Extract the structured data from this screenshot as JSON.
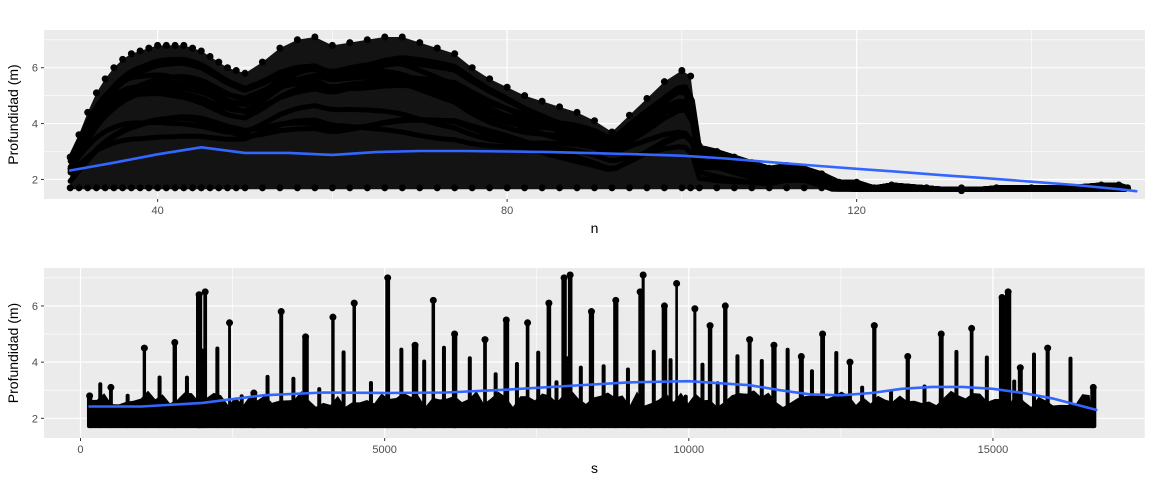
{
  "chart_data": [
    {
      "type": "scatter",
      "xlabel": "n",
      "ylabel": "Profundidad (m)",
      "xlim": [
        27,
        153
      ],
      "ylim": [
        1.3,
        7.35
      ],
      "x_ticks": [
        40,
        80,
        120
      ],
      "y_ticks": [
        2,
        4,
        6
      ],
      "grid": true,
      "legend": "none",
      "point_color": "#000000",
      "smooth_color": "#3366FF",
      "series": [
        {
          "kind": "points",
          "x": [
            30,
            31,
            32,
            33,
            34,
            35,
            36,
            37,
            38,
            39,
            40,
            41,
            42,
            43,
            44,
            45,
            46,
            47,
            48,
            49,
            50,
            52,
            54,
            56,
            58,
            60,
            62,
            64,
            66,
            68,
            70,
            72,
            74,
            76,
            78,
            80,
            82,
            84,
            86,
            88,
            90,
            92,
            94,
            96,
            98,
            100,
            101,
            102,
            104,
            106,
            108,
            110,
            112,
            114,
            116,
            118,
            120,
            122,
            124,
            128,
            132,
            136,
            140,
            144,
            148,
            150,
            151
          ],
          "y": [
            2.8,
            3.6,
            4.4,
            5.1,
            5.6,
            6.0,
            6.3,
            6.5,
            6.6,
            6.7,
            6.8,
            6.8,
            6.8,
            6.8,
            6.7,
            6.6,
            6.4,
            6.2,
            6.0,
            5.9,
            5.8,
            6.2,
            6.7,
            7.0,
            7.1,
            6.8,
            6.9,
            7.0,
            7.1,
            7.1,
            6.9,
            6.7,
            6.5,
            6.0,
            5.6,
            5.3,
            5.0,
            4.8,
            4.6,
            4.4,
            4.1,
            3.7,
            4.3,
            4.9,
            5.5,
            5.9,
            5.7,
            3.2,
            3.0,
            2.8,
            2.6,
            2.4,
            2.5,
            2.4,
            2.2,
            1.9,
            1.9,
            1.7,
            1.8,
            1.7,
            1.6,
            1.7,
            1.7,
            1.7,
            1.8,
            1.8,
            1.7
          ]
        },
        {
          "kind": "smooth",
          "x": [
            30,
            35,
            40,
            45,
            50,
            55,
            60,
            65,
            70,
            75,
            80,
            85,
            90,
            95,
            100,
            105,
            110,
            115,
            120,
            125,
            130,
            135,
            140,
            145,
            150,
            152
          ],
          "y": [
            2.32,
            2.6,
            2.9,
            3.15,
            2.95,
            2.95,
            2.88,
            2.98,
            3.02,
            3.02,
            3.0,
            2.98,
            2.94,
            2.9,
            2.85,
            2.75,
            2.62,
            2.5,
            2.38,
            2.27,
            2.15,
            2.04,
            1.92,
            1.8,
            1.65,
            1.58
          ]
        }
      ]
    },
    {
      "type": "scatter",
      "xlabel": "s",
      "ylabel": "Profundidad (m)",
      "xlim": [
        -600,
        17500
      ],
      "ylim": [
        1.3,
        7.35
      ],
      "x_ticks": [
        0,
        5000,
        10000,
        15000
      ],
      "y_ticks": [
        2,
        4,
        6
      ],
      "grid": true,
      "legend": "none",
      "point_color": "#000000",
      "smooth_color": "#3366FF",
      "series": [
        {
          "kind": "points",
          "x": [
            150,
            500,
            1050,
            1550,
            1950,
            2050,
            2450,
            2850,
            3300,
            3700,
            4150,
            4500,
            5050,
            5500,
            5800,
            6150,
            6650,
            7000,
            7350,
            7700,
            7950,
            8050,
            8400,
            8800,
            9200,
            9250,
            9600,
            9800,
            10100,
            10350,
            10600,
            11000,
            11400,
            11850,
            12200,
            12650,
            13050,
            13600,
            14150,
            14650,
            15150,
            15250,
            15450,
            15900,
            16650
          ],
          "y": [
            2.8,
            3.1,
            4.5,
            4.7,
            6.4,
            6.5,
            5.4,
            2.9,
            5.8,
            4.9,
            5.6,
            6.1,
            7.0,
            4.6,
            6.2,
            5.0,
            4.8,
            5.5,
            5.4,
            6.1,
            7.0,
            7.1,
            5.8,
            6.2,
            6.5,
            7.1,
            6.0,
            6.8,
            5.9,
            5.3,
            6.0,
            4.8,
            4.6,
            4.2,
            5.0,
            4.0,
            5.3,
            4.2,
            5.0,
            5.2,
            6.3,
            6.5,
            3.8,
            4.5,
            3.1
          ]
        },
        {
          "kind": "smooth",
          "x": [
            150,
            1000,
            2000,
            3000,
            4000,
            5000,
            6000,
            7000,
            8000,
            9000,
            10000,
            11000,
            11500,
            12000,
            12500,
            13000,
            13500,
            14000,
            14500,
            15000,
            15500,
            16000,
            16700
          ],
          "y": [
            2.42,
            2.42,
            2.55,
            2.82,
            2.92,
            2.9,
            2.92,
            3.02,
            3.15,
            3.28,
            3.32,
            3.18,
            3.0,
            2.85,
            2.82,
            2.9,
            3.05,
            3.12,
            3.12,
            3.05,
            2.9,
            2.7,
            2.3
          ]
        }
      ]
    }
  ]
}
